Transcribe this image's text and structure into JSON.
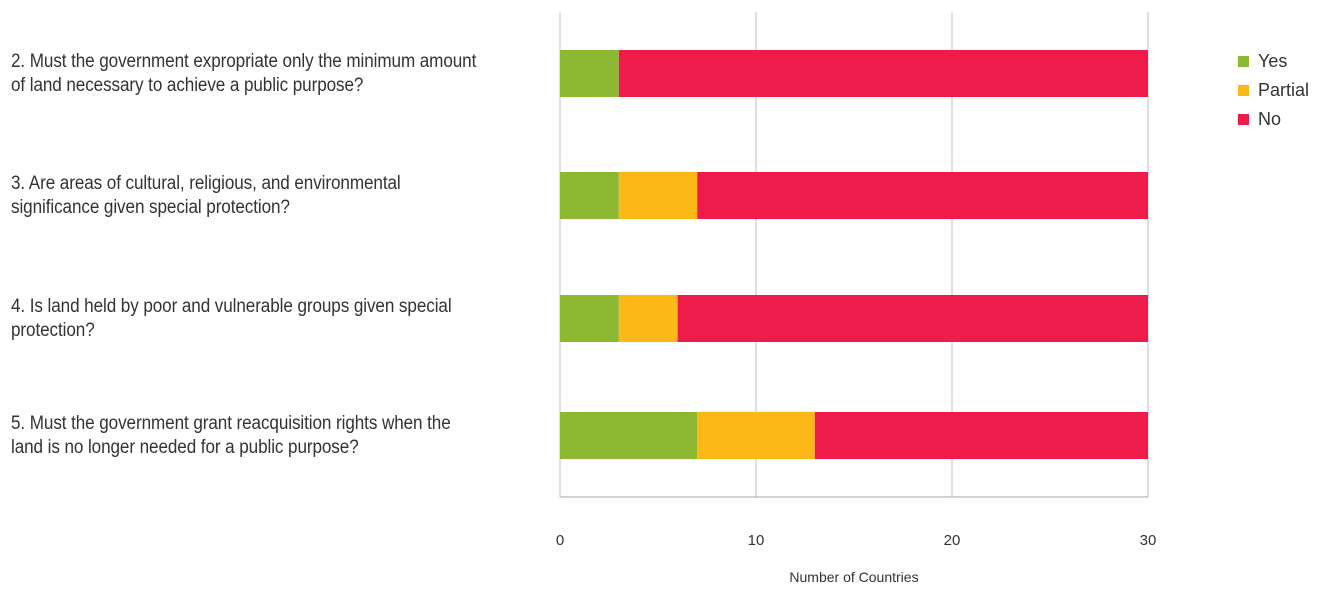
{
  "chart_data": {
    "type": "bar",
    "orientation": "horizontal",
    "stacked": true,
    "categories": [
      "2. Must the government expropriate only the minimum amount of land necessary to achieve a public purpose?",
      "3. Are areas of cultural, religious, and environmental significance given special protection?",
      "4. Is land held by poor and vulnerable groups given special protection?",
      "5. Must the government grant reacquisition rights when the land is no longer needed for a public purpose?"
    ],
    "series": [
      {
        "name": "Yes",
        "color": "#8cb832",
        "values": [
          3,
          3,
          3,
          7
        ]
      },
      {
        "name": "Partial",
        "color": "#fbb817",
        "values": [
          0,
          4,
          3,
          6
        ]
      },
      {
        "name": "No",
        "color": "#ef1c4b",
        "values": [
          27,
          23,
          24,
          17
        ]
      }
    ],
    "xlabel": "Number of Countries",
    "xlim": [
      0,
      30
    ],
    "xticks": [
      "0",
      "10",
      "20",
      "30"
    ],
    "grid": "vertical",
    "legend_position": "top-right"
  }
}
